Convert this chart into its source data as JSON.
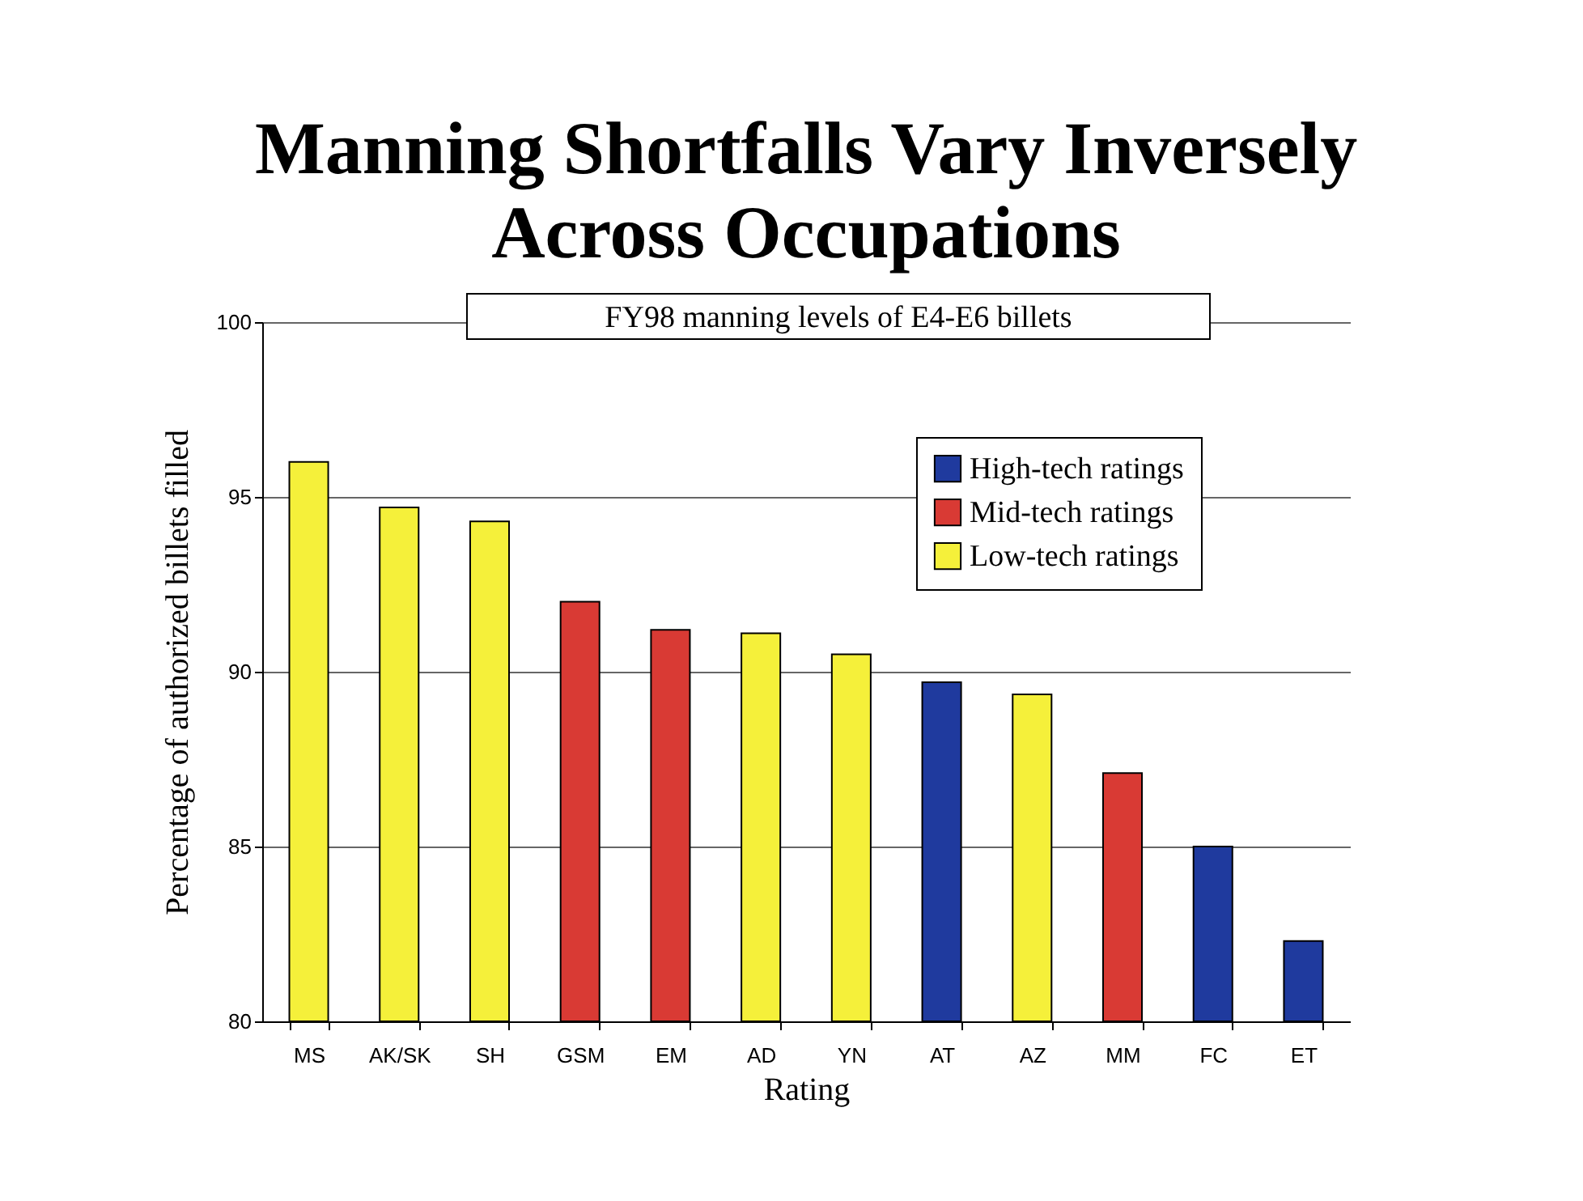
{
  "chart_data": {
    "type": "bar",
    "title": "Manning Shortfalls Vary Inversely Across Occupations",
    "xlabel": "Rating",
    "ylabel": "Percentage of authorized billets filled",
    "annotations": [
      "FY98 manning levels of E4-E6 billets"
    ],
    "categories": [
      "MS",
      "AK/SK",
      "SH",
      "GSM",
      "EM",
      "AD",
      "YN",
      "AT",
      "AZ",
      "MM",
      "FC",
      "ET"
    ],
    "series": [
      {
        "name": "High-tech ratings",
        "color": "#1f3a9e",
        "values": [
          null,
          null,
          null,
          null,
          null,
          null,
          null,
          89.7,
          null,
          null,
          85.0,
          82.3
        ]
      },
      {
        "name": "Mid-tech ratings",
        "color": "#d93a34",
        "values": [
          null,
          null,
          null,
          92.0,
          91.2,
          null,
          null,
          null,
          null,
          87.1,
          null,
          null
        ]
      },
      {
        "name": "Low-tech ratings",
        "color": "#f5f03a",
        "values": [
          96.0,
          94.7,
          94.3,
          null,
          null,
          91.1,
          90.5,
          null,
          89.35,
          null,
          null,
          null
        ]
      }
    ],
    "ylim": [
      80,
      100
    ],
    "yticks": [
      80,
      85,
      90,
      95,
      100
    ],
    "grid": "y",
    "legend": "top right"
  }
}
